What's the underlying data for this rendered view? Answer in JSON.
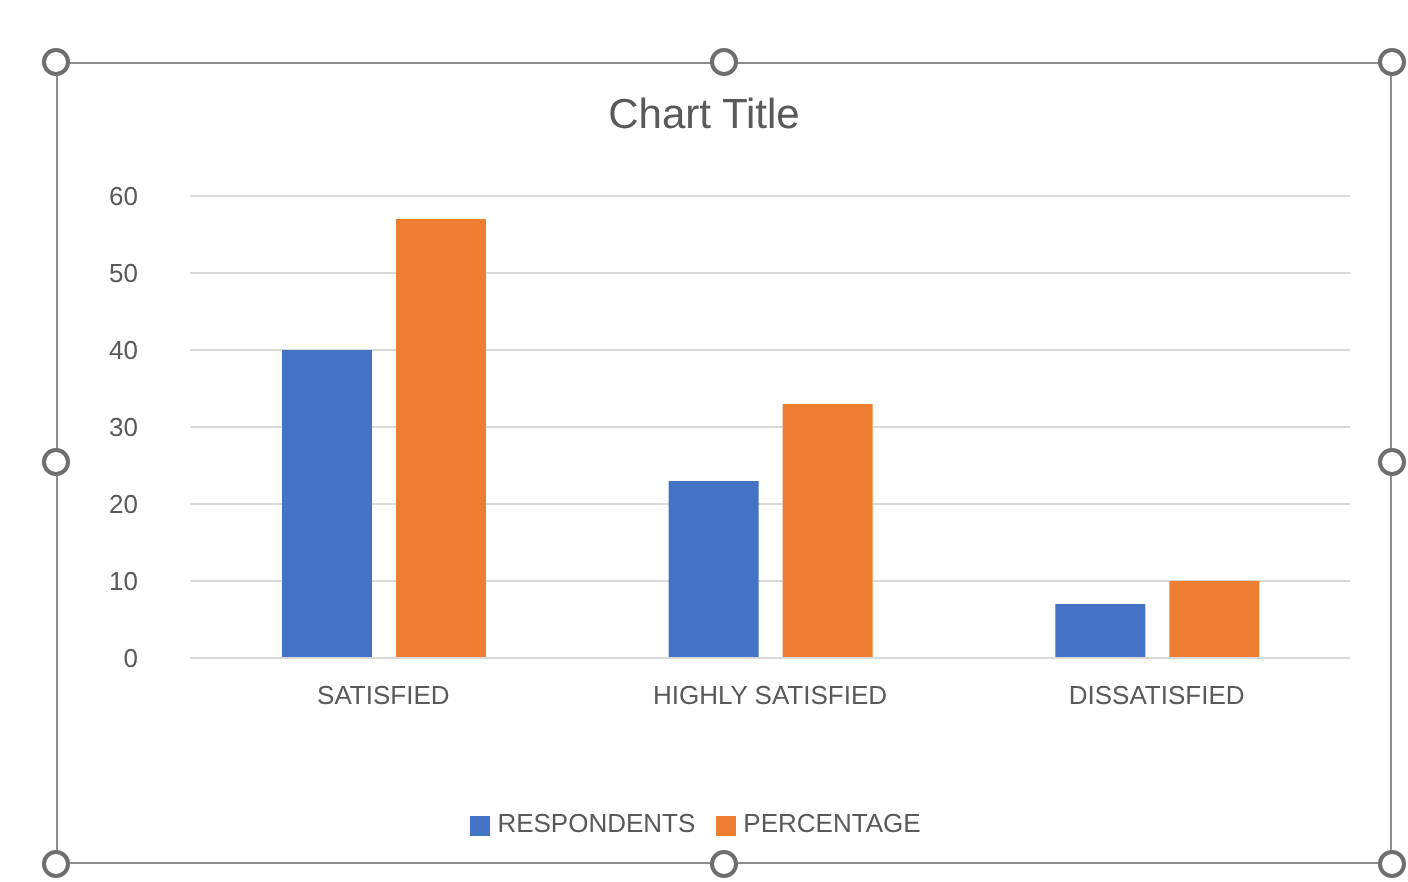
{
  "chart_data": {
    "type": "bar",
    "title": "Chart Title",
    "categories": [
      "SATISFIED",
      "HIGHLY SATISFIED",
      "DISSATISFIED"
    ],
    "series": [
      {
        "name": "RESPONDENTS",
        "color": "#4472c4",
        "values": [
          40,
          23,
          7
        ]
      },
      {
        "name": "PERCENTAGE",
        "color": "#ed7d31",
        "values": [
          57,
          33,
          10
        ]
      }
    ],
    "ylim": [
      0,
      60
    ],
    "yticks": [
      0,
      10,
      20,
      30,
      40,
      50,
      60
    ],
    "grid": "y",
    "legend": "bottom"
  }
}
